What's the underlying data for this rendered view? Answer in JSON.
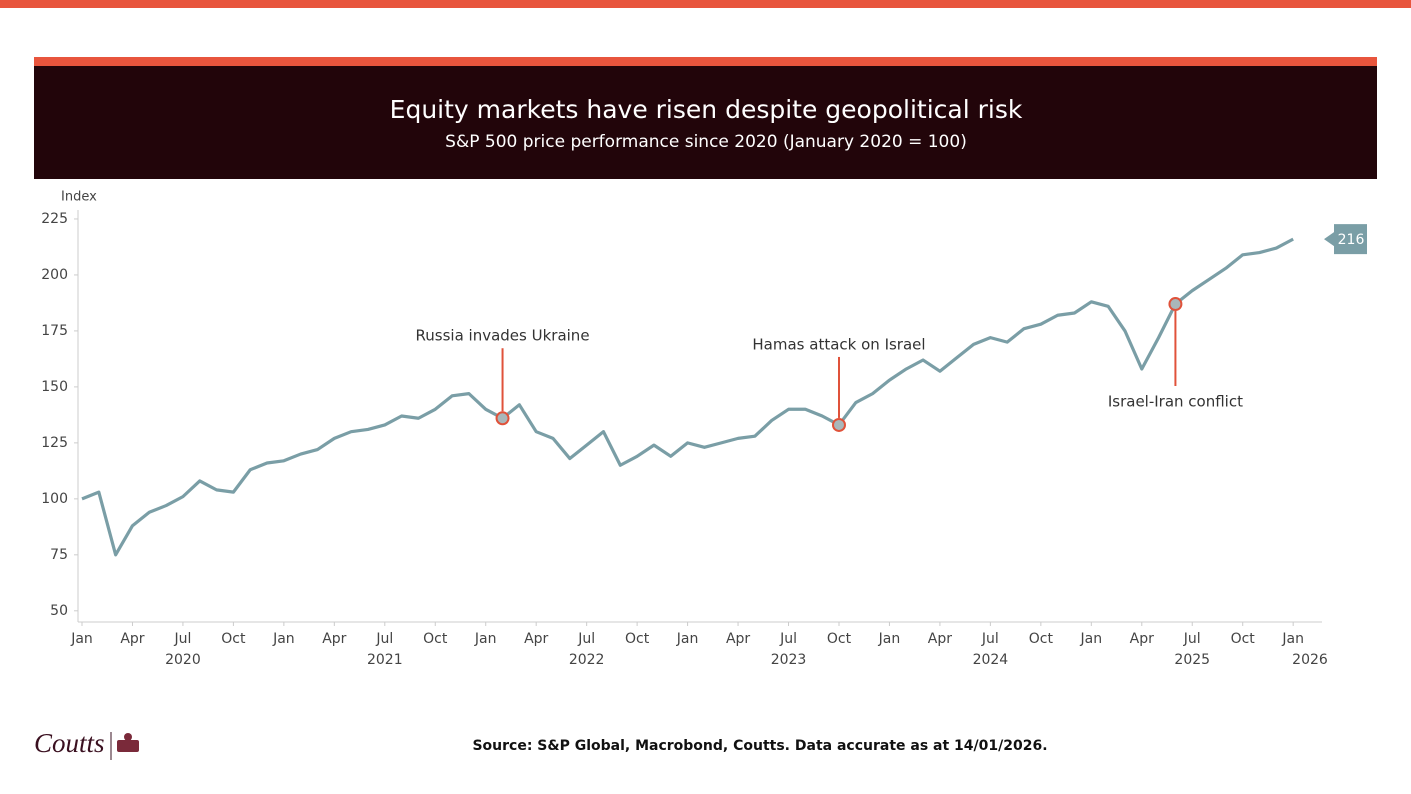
{
  "header": {
    "title": "Equity markets have risen despite geopolitical risk",
    "subtitle": "S&P 500 price performance since 2020 (January 2020 = 100)"
  },
  "chart_data": {
    "type": "line",
    "y_label": "Index",
    "x": [
      "2020-01",
      "2020-02",
      "2020-03",
      "2020-04",
      "2020-05",
      "2020-06",
      "2020-07",
      "2020-08",
      "2020-09",
      "2020-10",
      "2020-11",
      "2020-12",
      "2021-01",
      "2021-02",
      "2021-03",
      "2021-04",
      "2021-05",
      "2021-06",
      "2021-07",
      "2021-08",
      "2021-09",
      "2021-10",
      "2021-11",
      "2021-12",
      "2022-01",
      "2022-02",
      "2022-03",
      "2022-04",
      "2022-05",
      "2022-06",
      "2022-07",
      "2022-08",
      "2022-09",
      "2022-10",
      "2022-11",
      "2022-12",
      "2023-01",
      "2023-02",
      "2023-03",
      "2023-04",
      "2023-05",
      "2023-06",
      "2023-07",
      "2023-08",
      "2023-09",
      "2023-10",
      "2023-11",
      "2023-12",
      "2024-01",
      "2024-02",
      "2024-03",
      "2024-04",
      "2024-05",
      "2024-06",
      "2024-07",
      "2024-08",
      "2024-09",
      "2024-10",
      "2024-11",
      "2024-12",
      "2025-01",
      "2025-02",
      "2025-03",
      "2025-04",
      "2025-05",
      "2025-06",
      "2025-07",
      "2025-08",
      "2025-09",
      "2025-10",
      "2025-11",
      "2025-12",
      "2026-01"
    ],
    "series": [
      {
        "name": "S&P 500",
        "color": "#7a9ea6",
        "values": [
          100,
          103,
          75,
          88,
          94,
          97,
          101,
          108,
          104,
          103,
          113,
          116,
          117,
          120,
          122,
          127,
          130,
          131,
          133,
          137,
          136,
          140,
          146,
          147,
          140,
          136,
          142,
          130,
          127,
          118,
          124,
          130,
          115,
          119,
          124,
          119,
          125,
          123,
          125,
          127,
          128,
          135,
          140,
          140,
          137,
          133,
          143,
          147,
          153,
          158,
          162,
          157,
          163,
          169,
          172,
          170,
          176,
          178,
          182,
          183,
          188,
          186,
          175,
          158,
          172,
          187,
          193,
          198,
          203,
          209,
          210,
          212,
          216
        ]
      }
    ],
    "end_value": 216,
    "xlim": [
      "2020-01",
      "2026-02"
    ],
    "xticks": [
      {
        "value": "2020-01",
        "label": "Jan"
      },
      {
        "value": "2020-04",
        "label": "Apr"
      },
      {
        "value": "2020-07",
        "label": "Jul"
      },
      {
        "value": "2020-10",
        "label": "Oct"
      },
      {
        "value": "2021-01",
        "label": "Jan"
      },
      {
        "value": "2021-04",
        "label": "Apr"
      },
      {
        "value": "2021-07",
        "label": "Jul"
      },
      {
        "value": "2021-10",
        "label": "Oct"
      },
      {
        "value": "2022-01",
        "label": "Jan"
      },
      {
        "value": "2022-04",
        "label": "Apr"
      },
      {
        "value": "2022-07",
        "label": "Jul"
      },
      {
        "value": "2022-10",
        "label": "Oct"
      },
      {
        "value": "2023-01",
        "label": "Jan"
      },
      {
        "value": "2023-04",
        "label": "Apr"
      },
      {
        "value": "2023-07",
        "label": "Jul"
      },
      {
        "value": "2023-10",
        "label": "Oct"
      },
      {
        "value": "2024-01",
        "label": "Jan"
      },
      {
        "value": "2024-04",
        "label": "Apr"
      },
      {
        "value": "2024-07",
        "label": "Jul"
      },
      {
        "value": "2024-10",
        "label": "Oct"
      },
      {
        "value": "2025-01",
        "label": "Jan"
      },
      {
        "value": "2025-04",
        "label": "Apr"
      },
      {
        "value": "2025-07",
        "label": "Jul"
      },
      {
        "value": "2025-10",
        "label": "Oct"
      },
      {
        "value": "2026-01",
        "label": "Jan"
      }
    ],
    "x_year_labels": [
      "2020",
      "2021",
      "2022",
      "2023",
      "2024",
      "2025",
      "2026"
    ],
    "ylim": [
      45,
      229
    ],
    "yticks": [
      50,
      75,
      100,
      125,
      150,
      175,
      200,
      225
    ],
    "grid": false,
    "annotations": [
      {
        "text": "Russia invades Ukraine",
        "x": "2022-02",
        "y": 136
      },
      {
        "text": "Hamas attack on Israel",
        "x": "2023-10",
        "y": 133
      },
      {
        "text": "Israel-Iran conflict",
        "x": "2025-06",
        "y": 187
      }
    ]
  },
  "footer": {
    "brand": "Coutts",
    "source": "Source: S&P Global, Macrobond, Coutts. Data accurate as at 14/01/2026."
  }
}
